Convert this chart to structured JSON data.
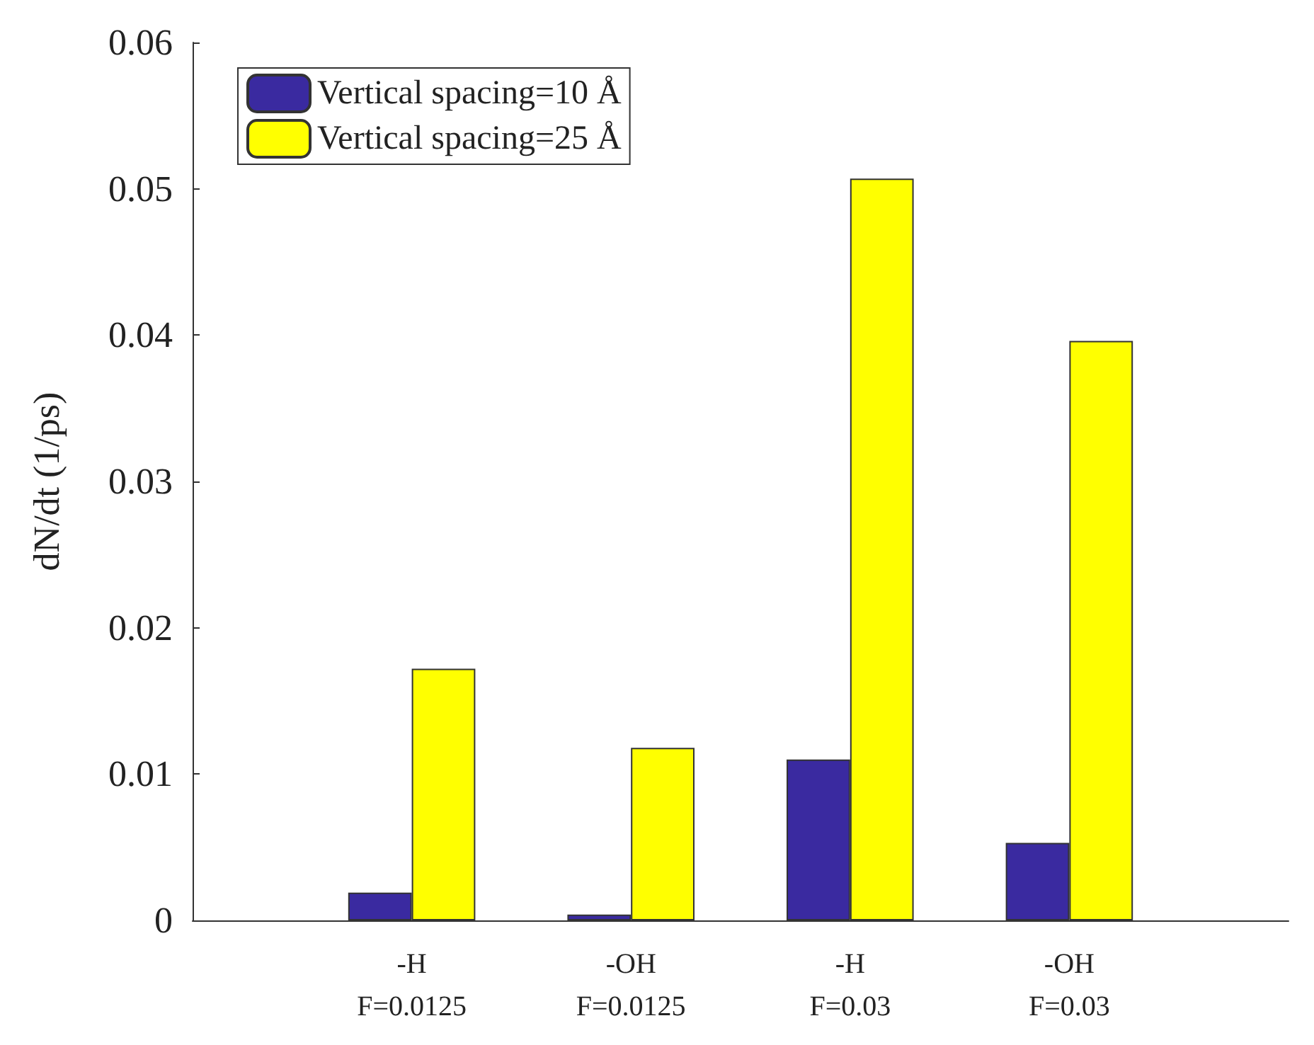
{
  "chart_data": {
    "type": "bar",
    "ylabel": "dN/dt (1/ps)",
    "categories": [
      null,
      "-H\nF=0.0125",
      "-OH\nF=0.0125",
      "-H\nF=0.03",
      "-OH\nF=0.03",
      null
    ],
    "series": [
      {
        "name": "Vertical spacing=10 Å",
        "color": "#3a2aa0",
        "values": [
          null,
          0.0019,
          0.0004,
          0.011,
          0.0053,
          null
        ]
      },
      {
        "name": "Vertical spacing=25 Å",
        "color": "#ffff00",
        "values": [
          null,
          0.0172,
          0.0118,
          0.0507,
          0.0396,
          null
        ]
      }
    ],
    "ylim": [
      0,
      0.06
    ],
    "yticks": [
      0,
      0.01,
      0.02,
      0.03,
      0.04,
      0.05,
      0.06
    ],
    "grid": false,
    "legend": "top left"
  }
}
